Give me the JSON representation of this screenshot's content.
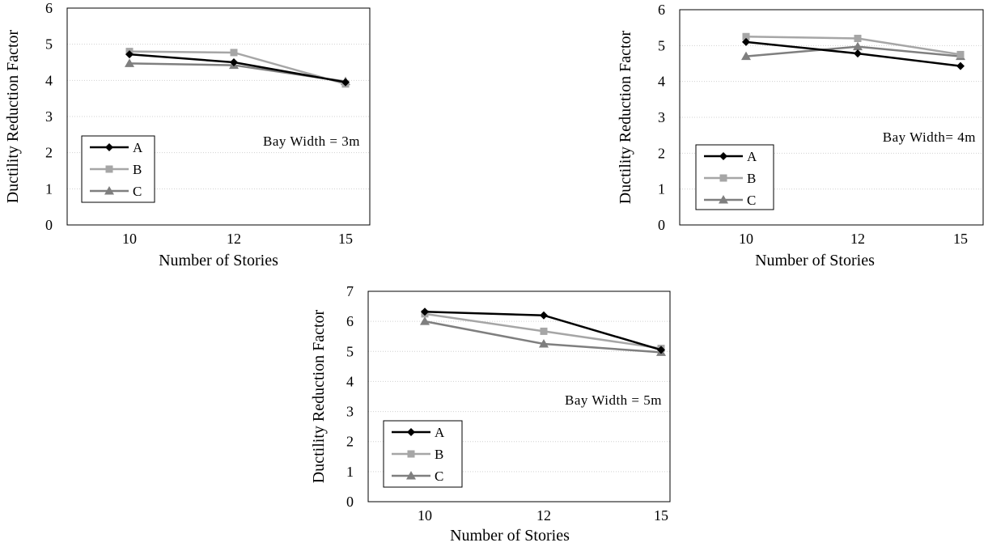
{
  "chart_data": [
    {
      "type": "line",
      "annotation": "Bay Width = 3m",
      "xlabel": "Number of Stories",
      "ylabel": "Ductility Reduction Factor",
      "categories": [
        "10",
        "12",
        "15"
      ],
      "ylim": [
        0,
        6
      ],
      "yticks": [
        "0",
        "1",
        "2",
        "3",
        "4",
        "5",
        "6"
      ],
      "grid": true,
      "legend_position": "bottom-left",
      "series": [
        {
          "name": "A",
          "values": [
            4.72,
            4.5,
            3.95
          ],
          "color": "#000000",
          "marker": "diamond"
        },
        {
          "name": "B",
          "values": [
            4.8,
            4.77,
            3.9
          ],
          "color": "#a6a6a6",
          "marker": "square"
        },
        {
          "name": "C",
          "values": [
            4.47,
            4.42,
            3.97
          ],
          "color": "#7f7f7f",
          "marker": "triangle"
        }
      ]
    },
    {
      "type": "line",
      "annotation": "Bay Width= 4m",
      "xlabel": "Number of Stories",
      "ylabel": "Ductility Reduction Factor",
      "categories": [
        "10",
        "12",
        "15"
      ],
      "ylim": [
        0,
        6
      ],
      "yticks": [
        "0",
        "1",
        "2",
        "3",
        "4",
        "5",
        "6"
      ],
      "grid": true,
      "legend_position": "bottom-left",
      "series": [
        {
          "name": "A",
          "values": [
            5.1,
            4.78,
            4.43
          ],
          "color": "#000000",
          "marker": "diamond"
        },
        {
          "name": "B",
          "values": [
            5.25,
            5.2,
            4.75
          ],
          "color": "#a6a6a6",
          "marker": "square"
        },
        {
          "name": "C",
          "values": [
            4.7,
            4.97,
            4.7
          ],
          "color": "#7f7f7f",
          "marker": "triangle"
        }
      ]
    },
    {
      "type": "line",
      "annotation": "Bay Width = 5m",
      "xlabel": "Number of Stories",
      "ylabel": "Ductility Reduction Factor",
      "categories": [
        "10",
        "12",
        "15"
      ],
      "ylim": [
        0,
        7
      ],
      "yticks": [
        "0",
        "1",
        "2",
        "3",
        "4",
        "5",
        "6",
        "7"
      ],
      "grid": true,
      "legend_position": "bottom-left",
      "series": [
        {
          "name": "A",
          "values": [
            6.32,
            6.2,
            5.05
          ],
          "color": "#000000",
          "marker": "diamond"
        },
        {
          "name": "B",
          "values": [
            6.25,
            5.67,
            5.1
          ],
          "color": "#a6a6a6",
          "marker": "square"
        },
        {
          "name": "C",
          "values": [
            6.0,
            5.25,
            4.97
          ],
          "color": "#7f7f7f",
          "marker": "triangle"
        }
      ]
    }
  ]
}
